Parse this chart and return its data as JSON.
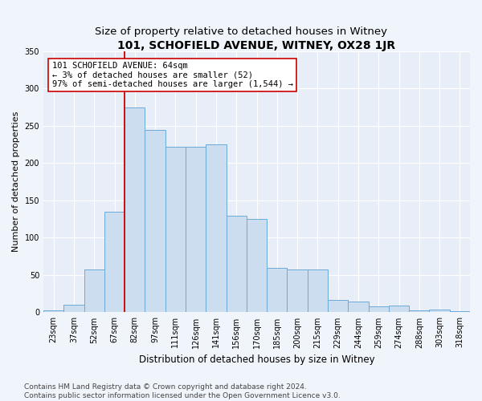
{
  "title": "101, SCHOFIELD AVENUE, WITNEY, OX28 1JR",
  "subtitle": "Size of property relative to detached houses in Witney",
  "xlabel": "Distribution of detached houses by size in Witney",
  "ylabel": "Number of detached properties",
  "categories": [
    "23sqm",
    "37sqm",
    "52sqm",
    "67sqm",
    "82sqm",
    "97sqm",
    "111sqm",
    "126sqm",
    "141sqm",
    "156sqm",
    "170sqm",
    "185sqm",
    "200sqm",
    "215sqm",
    "229sqm",
    "244sqm",
    "259sqm",
    "274sqm",
    "288sqm",
    "303sqm",
    "318sqm"
  ],
  "values": [
    3,
    10,
    58,
    135,
    275,
    245,
    222,
    222,
    225,
    130,
    125,
    60,
    58,
    57,
    17,
    14,
    8,
    9,
    3,
    4,
    2
  ],
  "bar_color": "#ccddf0",
  "bar_edge_color": "#6baad8",
  "vline_x_index": 3,
  "vline_color": "#cc0000",
  "annotation_text": "101 SCHOFIELD AVENUE: 64sqm\n← 3% of detached houses are smaller (52)\n97% of semi-detached houses are larger (1,544) →",
  "annotation_box_facecolor": "#ffffff",
  "annotation_box_edgecolor": "#cc0000",
  "ylim": [
    0,
    350
  ],
  "yticks": [
    0,
    50,
    100,
    150,
    200,
    250,
    300,
    350
  ],
  "footer_line1": "Contains HM Land Registry data © Crown copyright and database right 2024.",
  "footer_line2": "Contains public sector information licensed under the Open Government Licence v3.0.",
  "fig_bg_color": "#f0f4fb",
  "plot_bg_color": "#e8eef8",
  "grid_color": "#ffffff",
  "title_fontsize": 10,
  "xlabel_fontsize": 8.5,
  "ylabel_fontsize": 8,
  "tick_fontsize": 7,
  "annotation_fontsize": 7.5,
  "footer_fontsize": 6.5
}
